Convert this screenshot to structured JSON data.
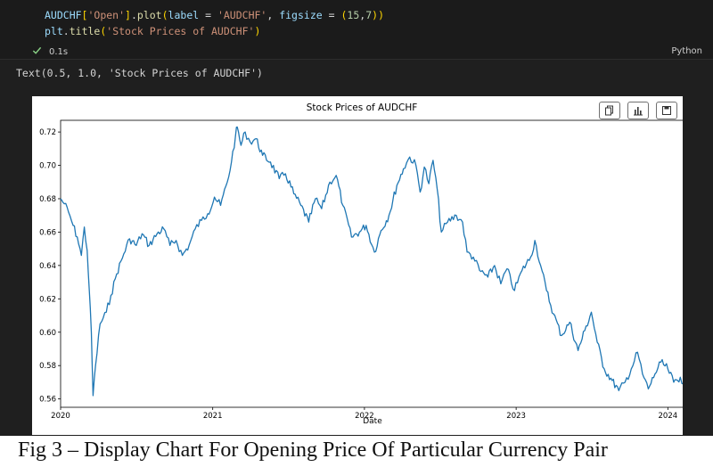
{
  "code_cell": {
    "line1": {
      "id": "AUDCHF",
      "b1": "[",
      "key": "'Open'",
      "b2": "]",
      "dot": ".",
      "fn": "plot",
      "p1": "(",
      "kw1": "label",
      "eq1": " = ",
      "val1": "'AUDCHF'",
      "comma": ", ",
      "kw2": "figsize",
      "eq2": " = ",
      "t1": "(",
      "n1": "15",
      "c2": ",",
      "n2": "7",
      "t2": ")",
      "p2": ")"
    },
    "line2": {
      "mod": "plt",
      "dot": ".",
      "fn": "title",
      "p1": "(",
      "arg": "'Stock Prices of AUDCHF'",
      "p2": ")"
    },
    "exec_time": "0.1s",
    "language": "Python"
  },
  "output": {
    "text": "Text(0.5, 1.0, 'Stock Prices of AUDCHF')"
  },
  "toolbar": {
    "icons": [
      "copy-icon",
      "chart-icon",
      "save-icon"
    ]
  },
  "caption": "Fig 3 – Display Chart For Opening Price Of Particular Currency Pair",
  "colors": {
    "line": "#1f77b4",
    "editor_bg": "#1f1f1f",
    "check": "#89d185"
  },
  "chart_data": {
    "type": "line",
    "title": "Stock Prices of AUDCHF",
    "xlabel": "Date",
    "ylabel": "",
    "xlim": [
      "2020-01-01",
      "2024-02-10"
    ],
    "ylim": [
      0.555,
      0.727
    ],
    "xticks": [
      "2020",
      "2021",
      "2022",
      "2023",
      "2024"
    ],
    "yticks": [
      "0.56",
      "0.58",
      "0.60",
      "0.62",
      "0.64",
      "0.66",
      "0.68",
      "0.70",
      "0.72"
    ],
    "grid": false,
    "series": [
      {
        "name": "AUDCHF",
        "points": [
          [
            "2020-01-01",
            0.68
          ],
          [
            "2020-01-10",
            0.677
          ],
          [
            "2020-01-20",
            0.672
          ],
          [
            "2020-01-31",
            0.664
          ],
          [
            "2020-02-10",
            0.657
          ],
          [
            "2020-02-20",
            0.646
          ],
          [
            "2020-02-27",
            0.663
          ],
          [
            "2020-03-05",
            0.649
          ],
          [
            "2020-03-10",
            0.625
          ],
          [
            "2020-03-15",
            0.6
          ],
          [
            "2020-03-19",
            0.562
          ],
          [
            "2020-03-25",
            0.58
          ],
          [
            "2020-04-05",
            0.605
          ],
          [
            "2020-04-20",
            0.612
          ],
          [
            "2020-05-01",
            0.622
          ],
          [
            "2020-05-15",
            0.635
          ],
          [
            "2020-06-01",
            0.647
          ],
          [
            "2020-06-15",
            0.656
          ],
          [
            "2020-07-01",
            0.652
          ],
          [
            "2020-07-15",
            0.659
          ],
          [
            "2020-08-01",
            0.652
          ],
          [
            "2020-08-20",
            0.659
          ],
          [
            "2020-09-05",
            0.662
          ],
          [
            "2020-09-20",
            0.652
          ],
          [
            "2020-10-05",
            0.655
          ],
          [
            "2020-10-20",
            0.646
          ],
          [
            "2020-11-05",
            0.652
          ],
          [
            "2020-11-20",
            0.662
          ],
          [
            "2020-12-05",
            0.667
          ],
          [
            "2020-12-20",
            0.671
          ],
          [
            "2021-01-05",
            0.681
          ],
          [
            "2021-01-20",
            0.676
          ],
          [
            "2021-02-05",
            0.69
          ],
          [
            "2021-02-15",
            0.702
          ],
          [
            "2021-02-25",
            0.718
          ],
          [
            "2021-03-01",
            0.723
          ],
          [
            "2021-03-10",
            0.712
          ],
          [
            "2021-03-20",
            0.72
          ],
          [
            "2021-04-01",
            0.714
          ],
          [
            "2021-04-15",
            0.716
          ],
          [
            "2021-05-01",
            0.706
          ],
          [
            "2021-05-20",
            0.702
          ],
          [
            "2021-06-10",
            0.692
          ],
          [
            "2021-06-25",
            0.695
          ],
          [
            "2021-07-15",
            0.683
          ],
          [
            "2021-08-01",
            0.676
          ],
          [
            "2021-08-20",
            0.666
          ],
          [
            "2021-09-05",
            0.68
          ],
          [
            "2021-09-20",
            0.674
          ],
          [
            "2021-10-10",
            0.69
          ],
          [
            "2021-10-25",
            0.694
          ],
          [
            "2021-11-10",
            0.676
          ],
          [
            "2021-12-01",
            0.657
          ],
          [
            "2021-12-20",
            0.66
          ],
          [
            "2022-01-05",
            0.664
          ],
          [
            "2022-01-25",
            0.648
          ],
          [
            "2022-02-10",
            0.661
          ],
          [
            "2022-03-01",
            0.67
          ],
          [
            "2022-03-20",
            0.688
          ],
          [
            "2022-04-05",
            0.698
          ],
          [
            "2022-04-20",
            0.705
          ],
          [
            "2022-05-05",
            0.7
          ],
          [
            "2022-05-15",
            0.684
          ],
          [
            "2022-05-25",
            0.699
          ],
          [
            "2022-06-05",
            0.689
          ],
          [
            "2022-06-15",
            0.703
          ],
          [
            "2022-06-25",
            0.686
          ],
          [
            "2022-07-05",
            0.66
          ],
          [
            "2022-07-20",
            0.666
          ],
          [
            "2022-08-10",
            0.67
          ],
          [
            "2022-08-25",
            0.666
          ],
          [
            "2022-09-05",
            0.648
          ],
          [
            "2022-09-20",
            0.645
          ],
          [
            "2022-10-05",
            0.637
          ],
          [
            "2022-10-25",
            0.633
          ],
          [
            "2022-11-10",
            0.64
          ],
          [
            "2022-11-25",
            0.629
          ],
          [
            "2022-12-10",
            0.638
          ],
          [
            "2022-12-28",
            0.625
          ],
          [
            "2023-01-15",
            0.637
          ],
          [
            "2023-02-05",
            0.645
          ],
          [
            "2023-02-15",
            0.655
          ],
          [
            "2023-03-01",
            0.64
          ],
          [
            "2023-03-15",
            0.625
          ],
          [
            "2023-04-01",
            0.611
          ],
          [
            "2023-04-20",
            0.598
          ],
          [
            "2023-05-10",
            0.606
          ],
          [
            "2023-05-30",
            0.589
          ],
          [
            "2023-06-15",
            0.601
          ],
          [
            "2023-07-01",
            0.612
          ],
          [
            "2023-07-15",
            0.594
          ],
          [
            "2023-08-01",
            0.578
          ],
          [
            "2023-08-20",
            0.571
          ],
          [
            "2023-09-05",
            0.565
          ],
          [
            "2023-09-20",
            0.57
          ],
          [
            "2023-10-05",
            0.578
          ],
          [
            "2023-10-20",
            0.588
          ],
          [
            "2023-11-01",
            0.575
          ],
          [
            "2023-11-15",
            0.566
          ],
          [
            "2023-12-01",
            0.575
          ],
          [
            "2023-12-15",
            0.582
          ],
          [
            "2024-01-01",
            0.578
          ],
          [
            "2024-01-15",
            0.57
          ],
          [
            "2024-01-31",
            0.573
          ],
          [
            "2024-02-08",
            0.569
          ]
        ]
      }
    ]
  }
}
